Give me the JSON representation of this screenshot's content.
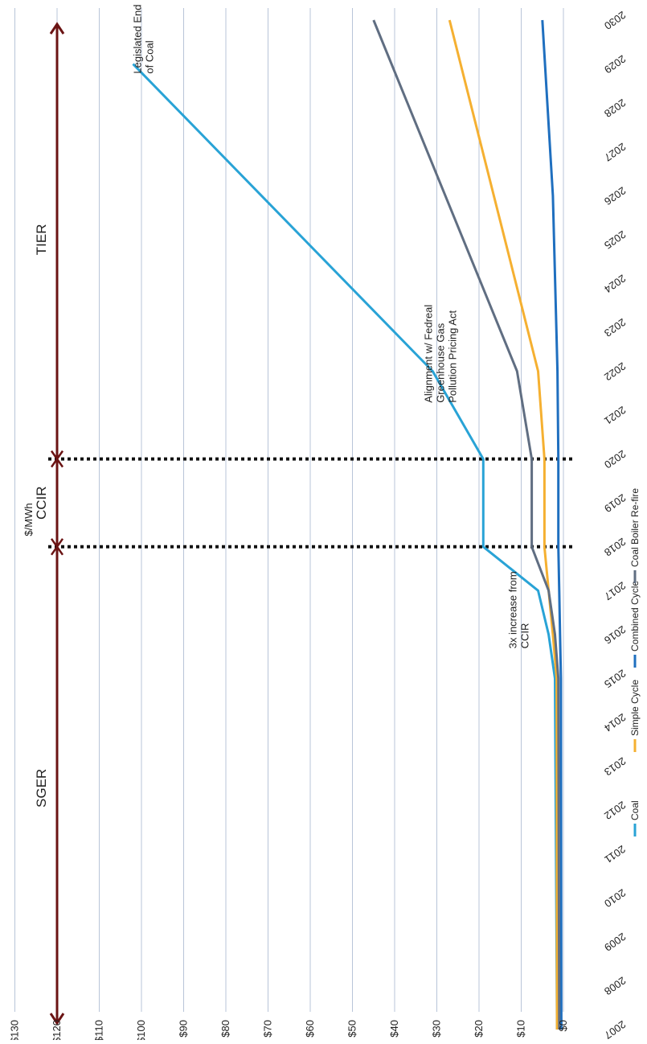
{
  "chart_data": {
    "type": "line",
    "orientation": "rotated-90-cw",
    "ylabel": "$/MWh",
    "ylim": [
      0,
      130
    ],
    "yticks": [
      0,
      10,
      20,
      30,
      40,
      50,
      60,
      70,
      80,
      90,
      100,
      110,
      120,
      130
    ],
    "ytick_labels": [
      "$0",
      "$10",
      "$20",
      "$30",
      "$40",
      "$50",
      "$60",
      "$70",
      "$80",
      "$90",
      "$100",
      "$110",
      "$120",
      "$130"
    ],
    "xlim": [
      2007,
      2030
    ],
    "xticks": [
      2007,
      2008,
      2009,
      2010,
      2011,
      2012,
      2013,
      2014,
      2015,
      2016,
      2017,
      2018,
      2019,
      2020,
      2021,
      2022,
      2023,
      2024,
      2025,
      2026,
      2027,
      2028,
      2029,
      2030
    ],
    "grid": true,
    "legend_position": "bottom",
    "series": [
      {
        "name": "Coal",
        "color": "#29a3d6",
        "x": [
          2007,
          2015,
          2016,
          2017,
          2018,
          2020,
          2022,
          2029
        ],
        "y": [
          1.5,
          2,
          3.5,
          6,
          19,
          19,
          31,
          102
        ]
      },
      {
        "name": "Simple Cycle",
        "color": "#f5b031",
        "x": [
          2007,
          2015,
          2016,
          2017,
          2018,
          2020,
          2022,
          2030
        ],
        "y": [
          1.5,
          1.6,
          2.5,
          3.5,
          4.5,
          4.5,
          6,
          27
        ]
      },
      {
        "name": "Combined Cycle",
        "color": "#1f6fbf",
        "x": [
          2007,
          2015,
          2016,
          2017,
          2018,
          2020,
          2022,
          2026,
          2030
        ],
        "y": [
          0.5,
          0.6,
          0.8,
          1.0,
          1.2,
          1.2,
          1.4,
          2.5,
          5
        ]
      },
      {
        "name": "Coal Boiler Re-fire",
        "color": "#606e82",
        "x": [
          2007,
          2015,
          2016,
          2017,
          2018,
          2020,
          2022,
          2030
        ],
        "y": [
          1.0,
          1.2,
          2.0,
          3.5,
          7.5,
          7.5,
          11,
          45
        ]
      }
    ],
    "periods": [
      {
        "label": "SGER",
        "from": 2007,
        "to": 2018
      },
      {
        "label": "CCIR",
        "from": 2018,
        "to": 2020
      },
      {
        "label": "TIER",
        "from": 2020,
        "to": 2030
      }
    ],
    "divider_years": [
      2018,
      2020
    ],
    "annotations": [
      {
        "lines": [
          "Legislated End",
          "of Coal"
        ],
        "x": 2029,
        "y": 102
      },
      {
        "lines": [
          "Alignment w/ Fedreal",
          "Greenhouse Gas",
          "Pollution Pricing Act"
        ],
        "x": 2021.5,
        "y": 33
      },
      {
        "lines": [
          "3x increase from",
          "CCIR"
        ],
        "x": 2015.9,
        "y": 13
      }
    ]
  }
}
